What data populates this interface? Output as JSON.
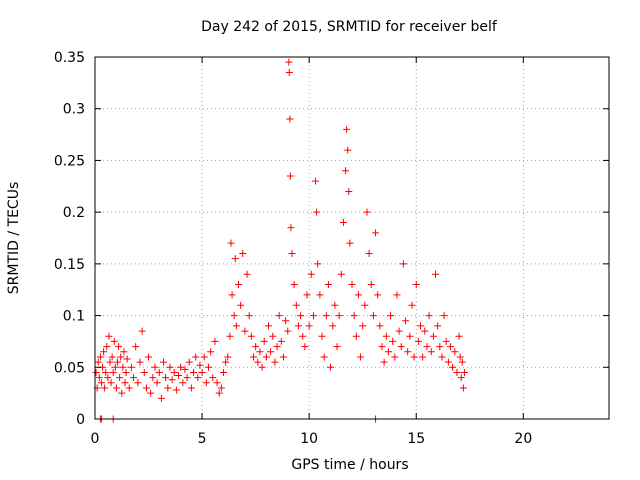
{
  "chart_data": {
    "type": "scatter",
    "title": "Day 242 of 2015, SRMTID for receiver belf",
    "xlabel": "GPS time / hours",
    "ylabel": "SRMTID / TECUs",
    "xlim": [
      0,
      24
    ],
    "ylim": [
      0,
      0.35
    ],
    "xticks": [
      0,
      5,
      10,
      15,
      20
    ],
    "xtick_labels": [
      "0",
      "5",
      "10",
      "15",
      "20"
    ],
    "yticks": [
      0,
      0.05,
      0.1,
      0.15,
      0.2,
      0.25,
      0.3,
      0.35
    ],
    "ytick_labels": [
      "0",
      "0.05",
      "0.1",
      "0.15",
      "0.2",
      "0.25",
      "0.3",
      "0.35"
    ],
    "grid": true,
    "marker": "+",
    "series": [
      {
        "name": "SRMTID",
        "color": "#ff0000",
        "points": [
          [
            0.05,
            0.045
          ],
          [
            0.1,
            0.03
          ],
          [
            0.15,
            0.055
          ],
          [
            0.2,
            0.04
          ],
          [
            0.25,
            0.06
          ],
          [
            0.3,
            0.035
          ],
          [
            0.35,
            0.05
          ],
          [
            0.4,
            0.065
          ],
          [
            0.45,
            0.03
          ],
          [
            0.5,
            0.045
          ],
          [
            0.55,
            0.07
          ],
          [
            0.6,
            0.04
          ],
          [
            0.65,
            0.08
          ],
          [
            0.7,
            0.055
          ],
          [
            0.75,
            0.035
          ],
          [
            0.8,
            0.06
          ],
          [
            0.85,
            0.045
          ],
          [
            0.9,
            0.075
          ],
          [
            0.95,
            0.05
          ],
          [
            1.0,
            0.03
          ],
          [
            1.05,
            0.055
          ],
          [
            1.1,
            0.07
          ],
          [
            1.15,
            0.04
          ],
          [
            1.2,
            0.06
          ],
          [
            1.25,
            0.025
          ],
          [
            1.3,
            0.05
          ],
          [
            1.35,
            0.065
          ],
          [
            1.4,
            0.035
          ],
          [
            1.45,
            0.045
          ],
          [
            1.5,
            0.058
          ],
          [
            1.6,
            0.03
          ],
          [
            1.7,
            0.05
          ],
          [
            1.8,
            0.04
          ],
          [
            1.9,
            0.07
          ],
          [
            2.0,
            0.035
          ],
          [
            2.1,
            0.055
          ],
          [
            2.2,
            0.085
          ],
          [
            2.3,
            0.045
          ],
          [
            2.4,
            0.03
          ],
          [
            2.5,
            0.06
          ],
          [
            2.6,
            0.025
          ],
          [
            2.7,
            0.04
          ],
          [
            2.8,
            0.05
          ],
          [
            2.9,
            0.035
          ],
          [
            3.0,
            0.045
          ],
          [
            3.1,
            0.02
          ],
          [
            3.2,
            0.055
          ],
          [
            3.3,
            0.04
          ],
          [
            3.4,
            0.03
          ],
          [
            3.5,
            0.05
          ],
          [
            3.6,
            0.038
          ],
          [
            3.7,
            0.045
          ],
          [
            3.8,
            0.028
          ],
          [
            3.9,
            0.042
          ],
          [
            4.0,
            0.05
          ],
          [
            4.1,
            0.035
          ],
          [
            4.2,
            0.048
          ],
          [
            4.3,
            0.04
          ],
          [
            4.4,
            0.055
          ],
          [
            4.5,
            0.03
          ],
          [
            4.6,
            0.045
          ],
          [
            4.7,
            0.06
          ],
          [
            4.8,
            0.04
          ],
          [
            4.9,
            0.052
          ],
          [
            5.0,
            0.045
          ],
          [
            5.1,
            0.06
          ],
          [
            5.2,
            0.035
          ],
          [
            5.3,
            0.05
          ],
          [
            5.4,
            0.065
          ],
          [
            5.5,
            0.04
          ],
          [
            5.6,
            0.075
          ],
          [
            5.7,
            0.035
          ],
          [
            5.8,
            0.025
          ],
          [
            5.9,
            0.03
          ],
          [
            6.0,
            0.045
          ],
          [
            6.1,
            0.055
          ],
          [
            6.2,
            0.06
          ],
          [
            6.3,
            0.08
          ],
          [
            6.35,
            0.17
          ],
          [
            6.4,
            0.12
          ],
          [
            6.5,
            0.1
          ],
          [
            6.55,
            0.155
          ],
          [
            6.6,
            0.09
          ],
          [
            6.7,
            0.13
          ],
          [
            6.8,
            0.11
          ],
          [
            6.9,
            0.16
          ],
          [
            7.0,
            0.085
          ],
          [
            7.1,
            0.14
          ],
          [
            7.2,
            0.1
          ],
          [
            7.3,
            0.08
          ],
          [
            7.4,
            0.06
          ],
          [
            7.5,
            0.07
          ],
          [
            7.6,
            0.055
          ],
          [
            7.7,
            0.065
          ],
          [
            7.8,
            0.05
          ],
          [
            7.9,
            0.075
          ],
          [
            8.0,
            0.06
          ],
          [
            8.1,
            0.09
          ],
          [
            8.2,
            0.065
          ],
          [
            8.3,
            0.08
          ],
          [
            8.4,
            0.055
          ],
          [
            8.5,
            0.07
          ],
          [
            8.6,
            0.1
          ],
          [
            8.7,
            0.075
          ],
          [
            8.8,
            0.06
          ],
          [
            8.9,
            0.095
          ],
          [
            9.0,
            0.085
          ],
          [
            9.05,
            0.345
          ],
          [
            9.07,
            0.335
          ],
          [
            9.1,
            0.29
          ],
          [
            9.12,
            0.235
          ],
          [
            9.15,
            0.185
          ],
          [
            9.2,
            0.16
          ],
          [
            9.3,
            0.13
          ],
          [
            9.4,
            0.11
          ],
          [
            9.5,
            0.09
          ],
          [
            9.6,
            0.1
          ],
          [
            9.7,
            0.08
          ],
          [
            9.8,
            0.07
          ],
          [
            9.9,
            0.12
          ],
          [
            10.0,
            0.09
          ],
          [
            10.1,
            0.14
          ],
          [
            10.2,
            0.1
          ],
          [
            10.3,
            0.23
          ],
          [
            10.35,
            0.2
          ],
          [
            10.4,
            0.15
          ],
          [
            10.5,
            0.12
          ],
          [
            10.6,
            0.08
          ],
          [
            10.7,
            0.06
          ],
          [
            10.8,
            0.1
          ],
          [
            10.9,
            0.13
          ],
          [
            11.0,
            0.05
          ],
          [
            11.1,
            0.09
          ],
          [
            11.2,
            0.11
          ],
          [
            11.3,
            0.07
          ],
          [
            11.4,
            0.1
          ],
          [
            11.5,
            0.14
          ],
          [
            11.6,
            0.19
          ],
          [
            11.7,
            0.24
          ],
          [
            11.75,
            0.28
          ],
          [
            11.8,
            0.26
          ],
          [
            11.85,
            0.22
          ],
          [
            11.9,
            0.17
          ],
          [
            12.0,
            0.13
          ],
          [
            12.1,
            0.1
          ],
          [
            12.2,
            0.08
          ],
          [
            12.3,
            0.12
          ],
          [
            12.4,
            0.06
          ],
          [
            12.5,
            0.09
          ],
          [
            12.6,
            0.11
          ],
          [
            12.7,
            0.2
          ],
          [
            12.8,
            0.16
          ],
          [
            12.9,
            0.13
          ],
          [
            13.0,
            0.1
          ],
          [
            13.1,
            0.18
          ],
          [
            13.2,
            0.12
          ],
          [
            13.3,
            0.09
          ],
          [
            13.4,
            0.07
          ],
          [
            13.5,
            0.055
          ],
          [
            13.6,
            0.08
          ],
          [
            13.7,
            0.065
          ],
          [
            13.8,
            0.1
          ],
          [
            13.9,
            0.075
          ],
          [
            14.0,
            0.06
          ],
          [
            14.1,
            0.12
          ],
          [
            14.2,
            0.085
          ],
          [
            14.3,
            0.07
          ],
          [
            14.4,
            0.15
          ],
          [
            14.5,
            0.095
          ],
          [
            14.6,
            0.065
          ],
          [
            14.7,
            0.08
          ],
          [
            14.8,
            0.11
          ],
          [
            14.9,
            0.06
          ],
          [
            15.0,
            0.13
          ],
          [
            15.1,
            0.075
          ],
          [
            15.2,
            0.09
          ],
          [
            15.3,
            0.06
          ],
          [
            15.4,
            0.085
          ],
          [
            15.5,
            0.07
          ],
          [
            15.6,
            0.1
          ],
          [
            15.7,
            0.065
          ],
          [
            15.8,
            0.08
          ],
          [
            15.9,
            0.14
          ],
          [
            16.0,
            0.09
          ],
          [
            16.1,
            0.07
          ],
          [
            16.2,
            0.06
          ],
          [
            16.3,
            0.1
          ],
          [
            16.4,
            0.075
          ],
          [
            16.5,
            0.055
          ],
          [
            16.6,
            0.07
          ],
          [
            16.7,
            0.05
          ],
          [
            16.8,
            0.065
          ],
          [
            16.9,
            0.045
          ],
          [
            17.0,
            0.08
          ],
          [
            17.05,
            0.06
          ],
          [
            17.1,
            0.04
          ],
          [
            17.15,
            0.055
          ],
          [
            17.2,
            0.03
          ],
          [
            17.25,
            0.045
          ],
          [
            13.1,
            0.0
          ],
          [
            0.25,
            0.0
          ],
          [
            0.3,
            0.0
          ],
          [
            0.85,
            0.0
          ]
        ]
      }
    ]
  }
}
